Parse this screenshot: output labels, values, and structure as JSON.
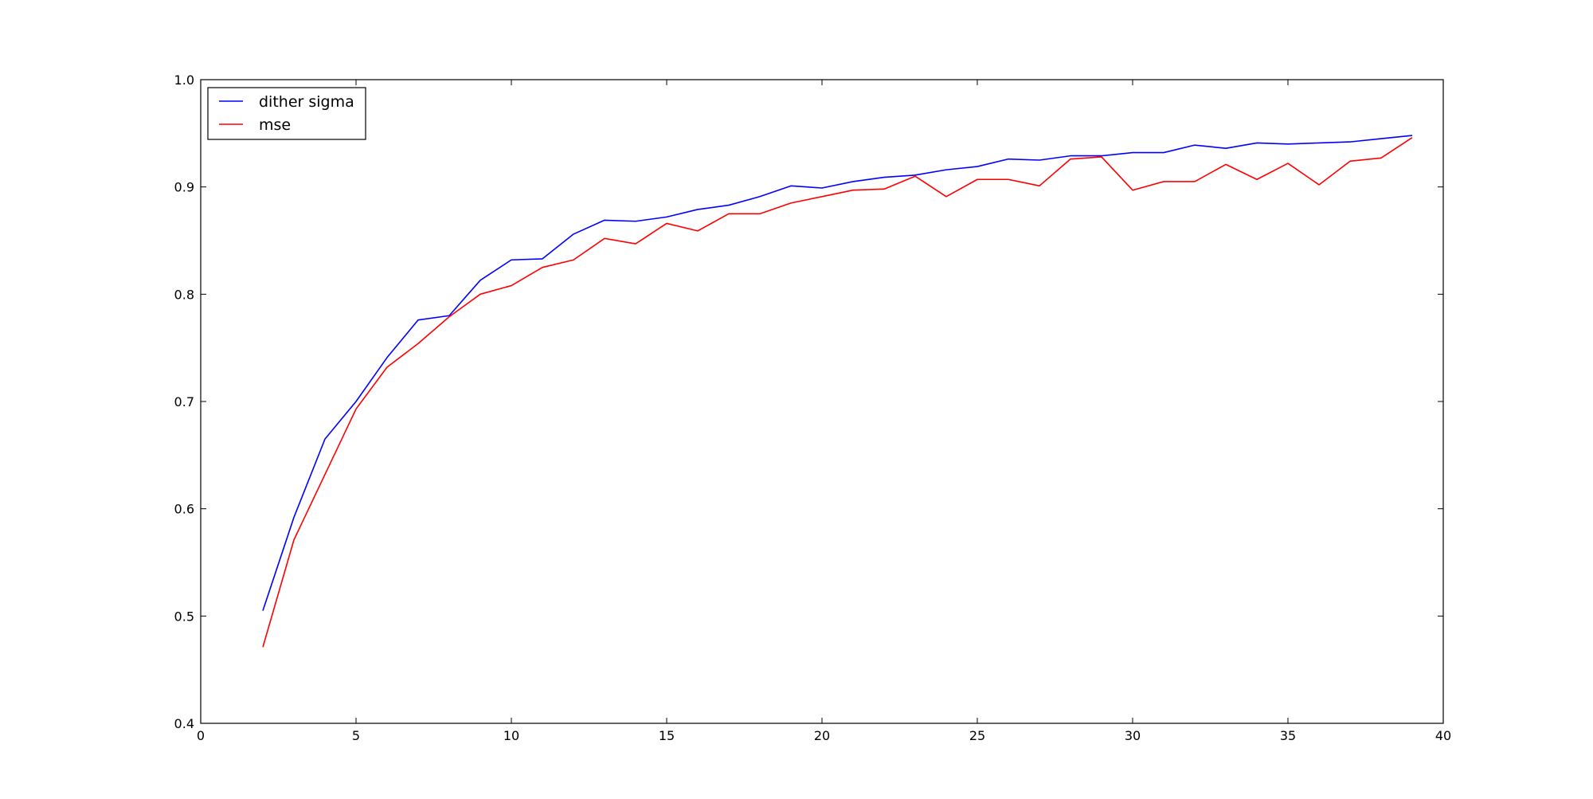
{
  "chart_data": {
    "type": "line",
    "title": "",
    "xlabel": "",
    "ylabel": "",
    "xlim": [
      0,
      40
    ],
    "ylim": [
      0.4,
      1.0
    ],
    "xticks": [
      0,
      5,
      10,
      15,
      20,
      25,
      30,
      35,
      40
    ],
    "yticks": [
      0.4,
      0.5,
      0.6,
      0.7,
      0.8,
      0.9,
      1.0
    ],
    "xtick_labels": [
      "0",
      "5",
      "10",
      "15",
      "20",
      "25",
      "30",
      "35",
      "40"
    ],
    "ytick_labels": [
      "0.4",
      "0.5",
      "0.6",
      "0.7",
      "0.8",
      "0.9",
      "1.0"
    ],
    "grid": false,
    "legend_position": "top-left",
    "x": [
      2,
      3,
      4,
      5,
      6,
      7,
      8,
      9,
      10,
      11,
      12,
      13,
      14,
      15,
      16,
      17,
      18,
      19,
      20,
      21,
      22,
      23,
      24,
      25,
      26,
      27,
      28,
      29,
      30,
      31,
      32,
      33,
      34,
      35,
      36,
      37,
      38,
      39
    ],
    "series": [
      {
        "name": "dither sigma",
        "color": "#0000ff",
        "values": [
          0.505,
          0.592,
          0.665,
          0.7,
          0.741,
          0.776,
          0.78,
          0.813,
          0.832,
          0.833,
          0.856,
          0.869,
          0.868,
          0.872,
          0.879,
          0.883,
          0.891,
          0.901,
          0.899,
          0.905,
          0.909,
          0.911,
          0.916,
          0.919,
          0.926,
          0.925,
          0.929,
          0.929,
          0.932,
          0.932,
          0.939,
          0.936,
          0.941,
          0.94,
          0.941,
          0.942,
          0.945,
          0.948
        ]
      },
      {
        "name": "mse",
        "color": "#ff0000",
        "values": [
          0.471,
          0.571,
          0.632,
          0.693,
          0.732,
          0.754,
          0.779,
          0.8,
          0.808,
          0.825,
          0.832,
          0.852,
          0.847,
          0.866,
          0.859,
          0.875,
          0.875,
          0.885,
          0.891,
          0.897,
          0.898,
          0.91,
          0.891,
          0.907,
          0.907,
          0.901,
          0.926,
          0.928,
          0.897,
          0.905,
          0.905,
          0.921,
          0.907,
          0.922,
          0.902,
          0.924,
          0.927,
          0.946
        ]
      }
    ]
  }
}
